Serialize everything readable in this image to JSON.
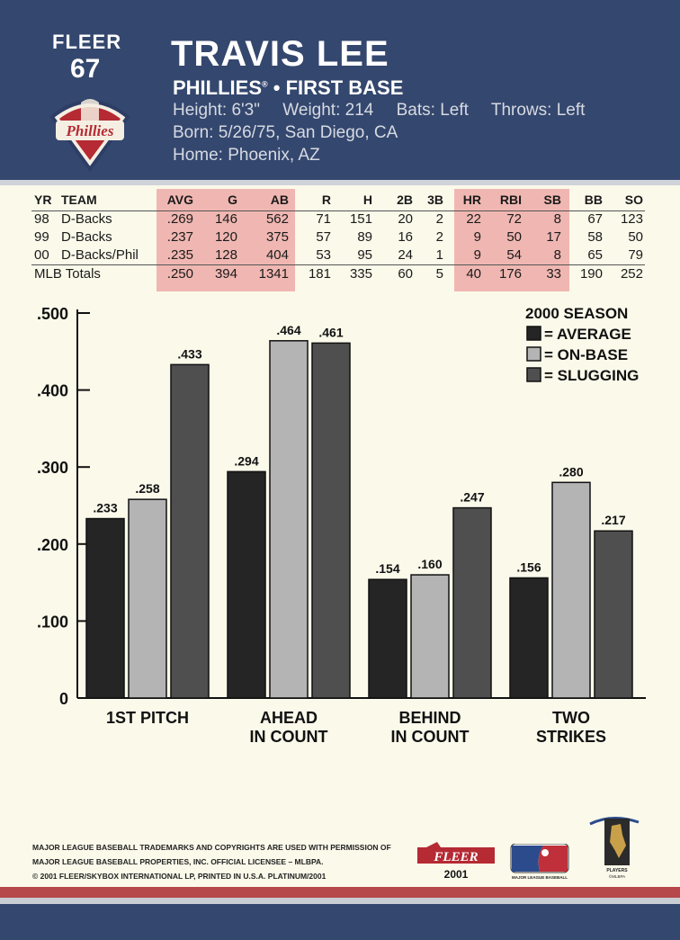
{
  "header": {
    "brand": "FLEER",
    "card_number": "67",
    "player_name": "TRAVIS LEE",
    "team": "PHILLIES",
    "team_mark": "®",
    "position": "• FIRST BASE",
    "height": "Height: 6'3\"",
    "weight": "Weight: 214",
    "bats": "Bats: Left",
    "throws": "Throws: Left",
    "born": "Born: 5/26/75, San Diego, CA",
    "home": "Home: Phoenix, AZ",
    "team_logo_text": "Phillies"
  },
  "stats": {
    "columns": [
      "YR",
      "TEAM",
      "AVG",
      "G",
      "AB",
      "R",
      "H",
      "2B",
      "3B",
      "HR",
      "RBI",
      "SB",
      "BB",
      "SO"
    ],
    "rows": [
      [
        "98",
        "D-Backs",
        ".269",
        "146",
        "562",
        "71",
        "151",
        "20",
        "2",
        "22",
        "72",
        "8",
        "67",
        "123"
      ],
      [
        "99",
        "D-Backs",
        ".237",
        "120",
        "375",
        "57",
        "89",
        "16",
        "2",
        "9",
        "50",
        "17",
        "58",
        "50"
      ],
      [
        "00",
        "D-Backs/Phil",
        ".235",
        "128",
        "404",
        "53",
        "95",
        "24",
        "1",
        "9",
        "54",
        "8",
        "65",
        "79"
      ]
    ],
    "totals": [
      "MLB Totals",
      ".250",
      "394",
      "1341",
      "181",
      "335",
      "60",
      "5",
      "40",
      "176",
      "33",
      "190",
      "252"
    ]
  },
  "chart_data": {
    "type": "bar",
    "title": "2000 SEASON",
    "categories": [
      "1ST PITCH",
      "AHEAD IN COUNT",
      "BEHIND IN COUNT",
      "TWO STRIKES"
    ],
    "category_lines": [
      [
        "1ST PITCH"
      ],
      [
        "AHEAD",
        "IN COUNT"
      ],
      [
        "BEHIND",
        "IN COUNT"
      ],
      [
        "TWO",
        "STRIKES"
      ]
    ],
    "series": [
      {
        "name": "= AVERAGE",
        "color": "#252525",
        "values": [
          0.233,
          0.294,
          0.154,
          0.156
        ],
        "labels": [
          ".233",
          ".294",
          ".154",
          ".156"
        ]
      },
      {
        "name": "= ON-BASE",
        "color": "#b4b4b4",
        "values": [
          0.258,
          0.464,
          0.16,
          0.28
        ],
        "labels": [
          ".258",
          ".464",
          ".160",
          ".280"
        ]
      },
      {
        "name": "= SLUGGING",
        "color": "#4f4f4f",
        "values": [
          0.433,
          0.461,
          0.247,
          0.217
        ],
        "labels": [
          ".433",
          ".461",
          ".247",
          ".217"
        ]
      }
    ],
    "yticks": [
      0,
      0.1,
      0.2,
      0.3,
      0.4,
      0.5
    ],
    "ytick_labels": [
      "0",
      ".100",
      ".200",
      ".300",
      ".400",
      ".500"
    ],
    "ylim": [
      0,
      0.5
    ],
    "legend_position": "top-right",
    "grid": false
  },
  "footer": {
    "disclaimer_1": "Major League Baseball trademarks and copyrights are used with permission of",
    "disclaimer_2": "Major League Baseball Properties, Inc. Official Licensee – MLBPA.",
    "disclaimer_3": "© 2001 Fleer/Skybox International LP, Printed in U.S.A. Platinum/2001",
    "fleer_logo": "FLEER",
    "fleer_year": "2001",
    "mlb_logo_text": "MAJOR LEAGUE BASEBALL",
    "mlbpa_text": "PLAYERS",
    "mlbpa_mark": "©MLBPA"
  },
  "colors": {
    "header_blue": "#34476e",
    "highlight_pink": "#f0b7b2",
    "card_cream": "#fbf9ea",
    "footer_red": "#b6474a"
  }
}
